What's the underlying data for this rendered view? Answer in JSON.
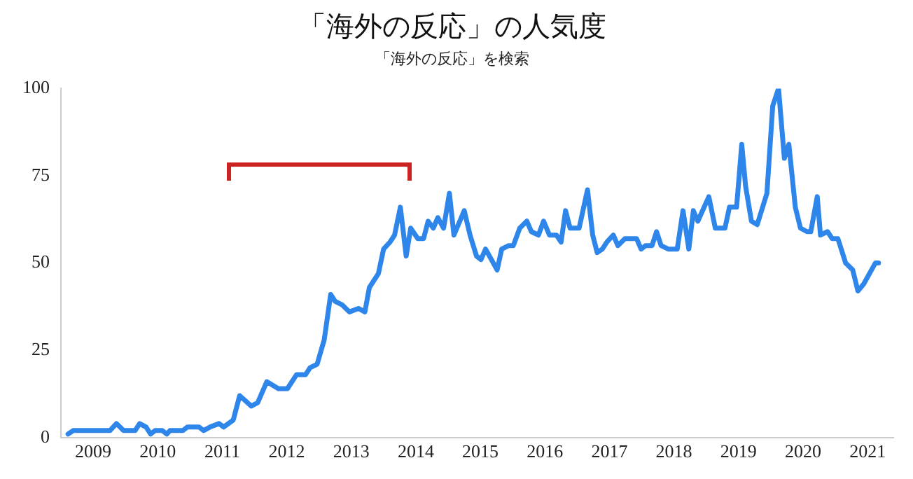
{
  "chart_data": {
    "type": "line",
    "title": "「海外の反応」の人気度",
    "subtitle": "「海外の反応」を検索",
    "xlim": [
      2008.5,
      2021.4
    ],
    "xticks": [
      2009,
      2010,
      2011,
      2012,
      2013,
      2014,
      2015,
      2016,
      2017,
      2018,
      2019,
      2020,
      2021
    ],
    "ylim": [
      0,
      100
    ],
    "yticks": [
      0,
      25,
      50,
      75,
      100
    ],
    "grid": false,
    "legend": false,
    "marker": "none",
    "line_style": "solid",
    "series": [
      {
        "color": "#2e86eb",
        "x": [
          2008.61,
          2008.69,
          2009.26,
          2009.36,
          2009.47,
          2009.65,
          2009.72,
          2009.82,
          2009.89,
          2009.96,
          2010.07,
          2010.14,
          2010.19,
          2010.39,
          2010.46,
          2010.64,
          2010.71,
          2010.81,
          2010.95,
          2011.02,
          2011.17,
          2011.27,
          2011.45,
          2011.55,
          2011.69,
          2011.87,
          2012.01,
          2012.15,
          2012.29,
          2012.36,
          2012.47,
          2012.58,
          2012.68,
          2012.75,
          2012.86,
          2012.97,
          2013.11,
          2013.21,
          2013.28,
          2013.42,
          2013.5,
          2013.6,
          2013.67,
          2013.76,
          2013.85,
          2013.92,
          2014.03,
          2014.12,
          2014.19,
          2014.27,
          2014.34,
          2014.43,
          2014.52,
          2014.59,
          2014.75,
          2014.84,
          2014.94,
          2015.01,
          2015.08,
          2015.26,
          2015.33,
          2015.44,
          2015.51,
          2015.61,
          2015.72,
          2015.79,
          2015.9,
          2015.98,
          2016.07,
          2016.18,
          2016.25,
          2016.32,
          2016.39,
          2016.53,
          2016.66,
          2016.74,
          2016.81,
          2016.89,
          2016.96,
          2017.06,
          2017.13,
          2017.24,
          2017.31,
          2017.42,
          2017.49,
          2017.56,
          2017.66,
          2017.73,
          2017.8,
          2017.91,
          2018.05,
          2018.14,
          2018.23,
          2018.3,
          2018.37,
          2018.54,
          2018.64,
          2018.79,
          2018.86,
          2018.97,
          2019.05,
          2019.11,
          2019.2,
          2019.29,
          2019.44,
          2019.53,
          2019.62,
          2019.71,
          2019.78,
          2019.88,
          2019.96,
          2020.06,
          2020.12,
          2020.22,
          2020.27,
          2020.38,
          2020.45,
          2020.54,
          2020.66,
          2020.77,
          2020.85,
          2020.94,
          2021.12,
          2021.17
        ],
        "values": [
          1,
          2,
          2,
          4,
          2,
          2,
          4,
          3,
          1,
          2,
          2,
          1,
          2,
          2,
          3,
          3,
          2,
          3,
          4,
          3,
          5,
          12,
          9,
          10,
          16,
          14,
          14,
          18,
          18,
          20,
          21,
          28,
          41,
          39,
          38,
          36,
          37,
          36,
          43,
          47,
          54,
          56,
          58,
          66,
          52,
          60,
          57,
          57,
          62,
          60,
          63,
          60,
          70,
          58,
          65,
          58,
          52,
          51,
          54,
          48,
          54,
          55,
          55,
          60,
          62,
          59,
          58,
          62,
          58,
          58,
          56,
          65,
          60,
          60,
          71,
          58,
          53,
          54,
          56,
          58,
          55,
          57,
          57,
          57,
          54,
          55,
          55,
          59,
          55,
          54,
          54,
          65,
          54,
          65,
          62,
          69,
          60,
          60,
          66,
          66,
          84,
          72,
          62,
          61,
          70,
          95,
          100,
          80,
          84,
          66,
          60,
          59,
          59,
          69,
          58,
          59,
          57,
          57,
          50,
          48,
          42,
          44,
          50,
          50
        ]
      }
    ]
  }
}
